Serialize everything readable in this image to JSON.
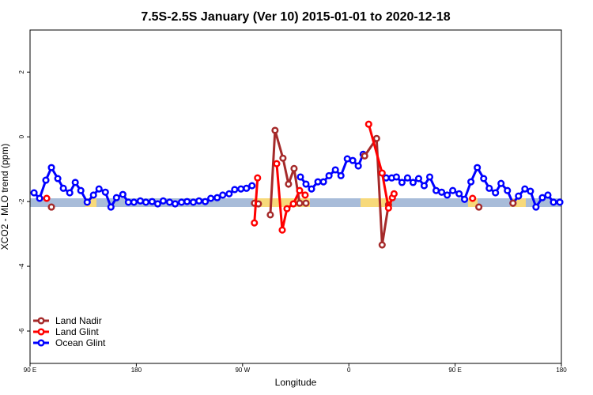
{
  "chart_data": {
    "type": "line",
    "title": "7.5S-2.5S January (Ver 10)   2015-01-01 to 2020-12-18",
    "x_label": "Longitude",
    "y_label": "XCO2 - MLO trend (ppm)",
    "xlim": [
      90,
      540
    ],
    "ylim": [
      -7,
      3.3
    ],
    "xticks": [
      {
        "value": 90,
        "label": "90 E"
      },
      180,
      {
        "value": 270,
        "label": "90 W"
      },
      {
        "value": 360,
        "label": "0"
      },
      {
        "value": 450,
        "label": "90 E"
      },
      {
        "value": 540,
        "label": "180"
      }
    ],
    "yticks": [
      -6,
      -4,
      -2,
      0,
      2
    ],
    "legend": "bottom-left",
    "series": [
      {
        "name": "Land Nadir",
        "color": "#a52a2a",
        "x": [
          108.1,
          null,
          280.1,
          283.4,
          null,
          293.5,
          297.5,
          304.2,
          308.9,
          313.6,
          318.3,
          323.7,
          null,
          373.4,
          383.5,
          388.2,
          393.6,
          null,
          470.1,
          null,
          499.0
        ],
        "values": [
          -2.17,
          null,
          -2.05,
          -2.07,
          null,
          -2.41,
          0.2,
          -0.66,
          -1.46,
          -0.98,
          -2.05,
          -2.05,
          null,
          -0.59,
          -0.05,
          -3.34,
          -2.1,
          null,
          -2.17,
          null,
          -2.05
        ]
      },
      {
        "name": "Land Glint",
        "color": "#ff0000",
        "x": [
          104.1,
          null,
          280.0,
          282.7,
          null,
          298.9,
          303.6,
          307.6,
          313.0,
          318.3,
          323.0,
          null,
          376.8,
          388.2,
          393.6,
          396.9,
          398.3,
          null,
          464.8
        ],
        "values": [
          -1.9,
          null,
          -2.66,
          -1.27,
          null,
          -0.83,
          -2.88,
          -2.22,
          -2.07,
          -1.66,
          -1.8,
          null,
          0.39,
          -1.12,
          -2.2,
          -1.88,
          -1.76,
          null,
          -1.9
        ]
      },
      {
        "name": "Ocean Glint",
        "color": "#0000ff",
        "x": [
          93.4,
          98.1,
          103.4,
          108.1,
          113.5,
          118.2,
          123.6,
          128.3,
          133.0,
          138.4,
          143.7,
          148.4,
          153.8,
          158.5,
          163.2,
          168.6,
          173.3,
          178.0,
          183.4,
          188.1,
          193.4,
          198.1,
          202.8,
          208.2,
          212.9,
          218.3,
          223.0,
          228.3,
          233.1,
          238.4,
          243.1,
          248.5,
          253.2,
          258.6,
          263.3,
          268.6,
          273.3,
          278.0,
          null,
          319.0,
          323.7,
          328.4,
          333.8,
          338.5,
          343.2,
          348.6,
          353.3,
          358.7,
          363.3,
          368.0,
          372.1,
          null,
          391.6,
          396.3,
          400.3,
          405.0,
          409.7,
          414.4,
          419.1,
          423.8,
          428.5,
          433.9,
          438.6,
          443.3,
          448.0,
          453.4,
          458.0,
          463.4,
          468.8,
          474.2,
          478.9,
          484.2,
          488.9,
          494.3,
          499.0,
          503.7,
          509.1,
          513.8,
          518.5,
          523.9,
          528.6,
          533.3,
          538.7
        ],
        "values": [
          -1.73,
          -1.9,
          -1.34,
          -0.95,
          -1.29,
          -1.59,
          -1.73,
          -1.41,
          -1.66,
          -2.02,
          -1.8,
          -1.61,
          -1.71,
          -2.17,
          -1.88,
          -1.78,
          -2.02,
          -2.02,
          -1.98,
          -2.02,
          -2.0,
          -2.07,
          -1.98,
          -2.02,
          -2.07,
          -2.02,
          -2.0,
          -2.02,
          -1.98,
          -2.0,
          -1.9,
          -1.88,
          -1.8,
          -1.76,
          -1.63,
          -1.61,
          -1.59,
          -1.51,
          null,
          -1.24,
          -1.46,
          -1.61,
          -1.39,
          -1.39,
          -1.2,
          -1.02,
          -1.2,
          -0.68,
          -0.73,
          -0.9,
          -0.54,
          null,
          -1.27,
          -1.27,
          -1.24,
          -1.41,
          -1.27,
          -1.41,
          -1.29,
          -1.51,
          -1.24,
          -1.66,
          -1.71,
          -1.8,
          -1.66,
          -1.76,
          -1.93,
          -1.39,
          -0.95,
          -1.29,
          -1.59,
          -1.73,
          -1.44,
          -1.66,
          -2.05,
          -1.83,
          -1.61,
          -1.68,
          -2.17,
          -1.88,
          -1.8,
          -2.02,
          -2.02
        ]
      }
    ]
  }
}
